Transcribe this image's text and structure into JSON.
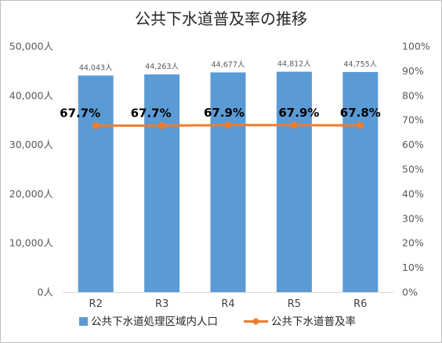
{
  "chart_data": {
    "type": "bar",
    "title": "公共下水道普及率の推移",
    "categories": [
      "R2",
      "R3",
      "R4",
      "R5",
      "R6"
    ],
    "series": [
      {
        "name": "公共下水道処理区域内人口",
        "type": "bar",
        "axis": "left",
        "values": [
          44043,
          44263,
          44677,
          44812,
          44755
        ],
        "labels": [
          "44,043人",
          "44,263人",
          "44,677人",
          "44,812人",
          "44,755人"
        ]
      },
      {
        "name": "公共下水道普及率",
        "type": "line",
        "axis": "right",
        "values": [
          67.7,
          67.7,
          67.9,
          67.9,
          67.8
        ],
        "labels": [
          "67.7%",
          "67.7%",
          "67.9%",
          "67.9%",
          "67.8%"
        ]
      }
    ],
    "y_left": {
      "lim": [
        0,
        50000
      ],
      "ticks": [
        "0人",
        "10,000人",
        "20,000人",
        "30,000人",
        "40,000人",
        "50,000人"
      ]
    },
    "y_right": {
      "lim": [
        0,
        100
      ],
      "ticks": [
        "0%",
        "10%",
        "20%",
        "30%",
        "40%",
        "50%",
        "60%",
        "70%",
        "80%",
        "90%",
        "100%"
      ]
    },
    "grid": false,
    "legend_position": "bottom",
    "colors": {
      "bar": "#5b9bd5",
      "line": "#ed7d31"
    }
  }
}
